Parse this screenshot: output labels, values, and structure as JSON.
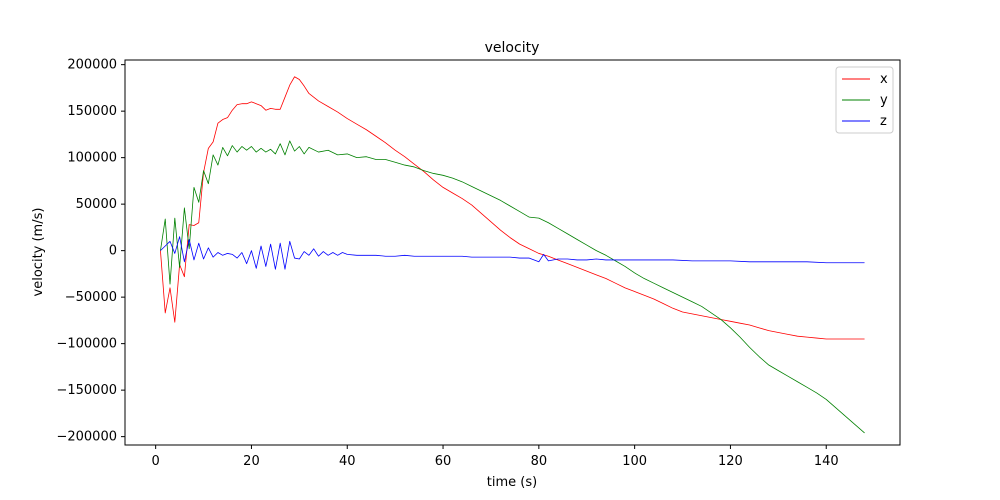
{
  "chart_data": {
    "type": "line",
    "title": "velocity",
    "xlabel": "time (s)",
    "ylabel": "velocity (m/s)",
    "xlim": [
      -6.4,
      155.4
    ],
    "ylim": [
      -209000,
      205000
    ],
    "xticks": [
      0,
      20,
      40,
      60,
      80,
      100,
      120,
      140
    ],
    "yticks": [
      -200000,
      -150000,
      -100000,
      -50000,
      0,
      50000,
      100000,
      150000,
      200000
    ],
    "grid": false,
    "legend_position": "top-right",
    "series": [
      {
        "name": "x",
        "color": "#ff0000",
        "points": [
          [
            1,
            0
          ],
          [
            2,
            -67000
          ],
          [
            3,
            -40000
          ],
          [
            4,
            -77000
          ],
          [
            5,
            -15000
          ],
          [
            6,
            -28000
          ],
          [
            7,
            28000
          ],
          [
            8,
            27000
          ],
          [
            9,
            30000
          ],
          [
            10,
            84000
          ],
          [
            11,
            110000
          ],
          [
            12,
            117000
          ],
          [
            13,
            137000
          ],
          [
            14,
            141000
          ],
          [
            15,
            143000
          ],
          [
            16,
            151000
          ],
          [
            17,
            157000
          ],
          [
            18,
            158000
          ],
          [
            19,
            158000
          ],
          [
            20,
            160000
          ],
          [
            21,
            158000
          ],
          [
            22,
            156000
          ],
          [
            23,
            151000
          ],
          [
            24,
            153000
          ],
          [
            25,
            152000
          ],
          [
            26,
            152000
          ],
          [
            27,
            165000
          ],
          [
            28,
            178000
          ],
          [
            29,
            187000
          ],
          [
            30,
            184000
          ],
          [
            31,
            177000
          ],
          [
            32,
            169000
          ],
          [
            34,
            161000
          ],
          [
            36,
            155000
          ],
          [
            38,
            149000
          ],
          [
            40,
            142000
          ],
          [
            42,
            136000
          ],
          [
            44,
            130000
          ],
          [
            46,
            123000
          ],
          [
            48,
            116000
          ],
          [
            50,
            108000
          ],
          [
            52,
            101000
          ],
          [
            54,
            93000
          ],
          [
            56,
            85000
          ],
          [
            58,
            76000
          ],
          [
            60,
            68000
          ],
          [
            62,
            62000
          ],
          [
            64,
            56000
          ],
          [
            66,
            49000
          ],
          [
            68,
            40000
          ],
          [
            70,
            31000
          ],
          [
            72,
            22000
          ],
          [
            74,
            14000
          ],
          [
            76,
            7000
          ],
          [
            78,
            2000
          ],
          [
            80,
            -3000
          ],
          [
            82,
            -6000
          ],
          [
            84,
            -10000
          ],
          [
            86,
            -14000
          ],
          [
            88,
            -18000
          ],
          [
            90,
            -22000
          ],
          [
            92,
            -26000
          ],
          [
            94,
            -30000
          ],
          [
            96,
            -35000
          ],
          [
            98,
            -40000
          ],
          [
            100,
            -44000
          ],
          [
            102,
            -48000
          ],
          [
            104,
            -52000
          ],
          [
            106,
            -57000
          ],
          [
            108,
            -62000
          ],
          [
            110,
            -66000
          ],
          [
            112,
            -68000
          ],
          [
            114,
            -70000
          ],
          [
            116,
            -72000
          ],
          [
            118,
            -74000
          ],
          [
            120,
            -76000
          ],
          [
            122,
            -78000
          ],
          [
            124,
            -80000
          ],
          [
            126,
            -83000
          ],
          [
            128,
            -86000
          ],
          [
            130,
            -88000
          ],
          [
            132,
            -90000
          ],
          [
            134,
            -92000
          ],
          [
            136,
            -93000
          ],
          [
            138,
            -94000
          ],
          [
            140,
            -95000
          ],
          [
            144,
            -95000
          ],
          [
            148,
            -95000
          ]
        ]
      },
      {
        "name": "y",
        "color": "#008000",
        "points": [
          [
            1,
            0
          ],
          [
            2,
            34000
          ],
          [
            3,
            -36000
          ],
          [
            4,
            35000
          ],
          [
            5,
            -18000
          ],
          [
            6,
            46000
          ],
          [
            7,
            2000
          ],
          [
            8,
            68000
          ],
          [
            9,
            52000
          ],
          [
            10,
            86000
          ],
          [
            11,
            72000
          ],
          [
            12,
            103000
          ],
          [
            13,
            92000
          ],
          [
            14,
            111000
          ],
          [
            15,
            102000
          ],
          [
            16,
            113000
          ],
          [
            17,
            106000
          ],
          [
            18,
            112000
          ],
          [
            19,
            108000
          ],
          [
            20,
            112000
          ],
          [
            21,
            106000
          ],
          [
            22,
            110000
          ],
          [
            23,
            106000
          ],
          [
            24,
            109000
          ],
          [
            25,
            104000
          ],
          [
            26,
            115000
          ],
          [
            27,
            103000
          ],
          [
            28,
            118000
          ],
          [
            29,
            107000
          ],
          [
            30,
            112000
          ],
          [
            31,
            104000
          ],
          [
            32,
            111000
          ],
          [
            34,
            106000
          ],
          [
            36,
            108000
          ],
          [
            38,
            103000
          ],
          [
            40,
            104000
          ],
          [
            42,
            100000
          ],
          [
            44,
            101000
          ],
          [
            46,
            98000
          ],
          [
            48,
            98000
          ],
          [
            50,
            95000
          ],
          [
            52,
            92000
          ],
          [
            54,
            90000
          ],
          [
            56,
            86000
          ],
          [
            58,
            83000
          ],
          [
            60,
            81000
          ],
          [
            62,
            78000
          ],
          [
            64,
            74000
          ],
          [
            66,
            69000
          ],
          [
            68,
            64000
          ],
          [
            70,
            59000
          ],
          [
            72,
            54000
          ],
          [
            74,
            48000
          ],
          [
            76,
            42000
          ],
          [
            78,
            36000
          ],
          [
            80,
            35000
          ],
          [
            82,
            30000
          ],
          [
            84,
            24000
          ],
          [
            86,
            18000
          ],
          [
            88,
            12000
          ],
          [
            90,
            6000
          ],
          [
            92,
            0
          ],
          [
            94,
            -5000
          ],
          [
            96,
            -11000
          ],
          [
            98,
            -17000
          ],
          [
            100,
            -24000
          ],
          [
            102,
            -30000
          ],
          [
            104,
            -35000
          ],
          [
            106,
            -40000
          ],
          [
            108,
            -45000
          ],
          [
            110,
            -50000
          ],
          [
            112,
            -55000
          ],
          [
            114,
            -60000
          ],
          [
            116,
            -67000
          ],
          [
            118,
            -74000
          ],
          [
            120,
            -83000
          ],
          [
            122,
            -93000
          ],
          [
            124,
            -104000
          ],
          [
            126,
            -114000
          ],
          [
            128,
            -123000
          ],
          [
            130,
            -129000
          ],
          [
            132,
            -135000
          ],
          [
            134,
            -141000
          ],
          [
            136,
            -147000
          ],
          [
            138,
            -153000
          ],
          [
            140,
            -160000
          ],
          [
            142,
            -169000
          ],
          [
            144,
            -178000
          ],
          [
            146,
            -187000
          ],
          [
            148,
            -196000
          ]
        ]
      },
      {
        "name": "z",
        "color": "#0000ff",
        "points": [
          [
            1,
            0
          ],
          [
            2,
            5000
          ],
          [
            3,
            10000
          ],
          [
            4,
            -3000
          ],
          [
            5,
            15000
          ],
          [
            6,
            -12000
          ],
          [
            7,
            12000
          ],
          [
            8,
            -10000
          ],
          [
            9,
            8000
          ],
          [
            10,
            -9000
          ],
          [
            11,
            3000
          ],
          [
            12,
            -7000
          ],
          [
            13,
            -2000
          ],
          [
            14,
            -5000
          ],
          [
            15,
            -3000
          ],
          [
            16,
            -4000
          ],
          [
            17,
            -8000
          ],
          [
            18,
            -2000
          ],
          [
            19,
            -14000
          ],
          [
            20,
            0
          ],
          [
            21,
            -19000
          ],
          [
            22,
            5000
          ],
          [
            23,
            -17000
          ],
          [
            24,
            7000
          ],
          [
            25,
            -20000
          ],
          [
            26,
            8000
          ],
          [
            27,
            -20000
          ],
          [
            28,
            10000
          ],
          [
            29,
            -8000
          ],
          [
            30,
            -9000
          ],
          [
            31,
            -1000
          ],
          [
            32,
            -5000
          ],
          [
            33,
            2000
          ],
          [
            34,
            -6000
          ],
          [
            35,
            -1000
          ],
          [
            36,
            -5000
          ],
          [
            37,
            -2000
          ],
          [
            38,
            -5000
          ],
          [
            39,
            -2000
          ],
          [
            40,
            -4000
          ],
          [
            42,
            -5000
          ],
          [
            44,
            -5000
          ],
          [
            46,
            -5000
          ],
          [
            48,
            -6000
          ],
          [
            50,
            -6000
          ],
          [
            52,
            -5000
          ],
          [
            54,
            -6000
          ],
          [
            56,
            -6000
          ],
          [
            58,
            -6000
          ],
          [
            60,
            -6000
          ],
          [
            62,
            -6000
          ],
          [
            64,
            -6000
          ],
          [
            66,
            -7000
          ],
          [
            68,
            -7000
          ],
          [
            70,
            -7000
          ],
          [
            72,
            -7000
          ],
          [
            74,
            -7000
          ],
          [
            76,
            -8000
          ],
          [
            78,
            -8000
          ],
          [
            80,
            -12000
          ],
          [
            81,
            -4000
          ],
          [
            82,
            -11000
          ],
          [
            84,
            -9000
          ],
          [
            86,
            -9000
          ],
          [
            88,
            -10000
          ],
          [
            90,
            -10000
          ],
          [
            92,
            -9000
          ],
          [
            94,
            -10000
          ],
          [
            96,
            -10000
          ],
          [
            98,
            -10000
          ],
          [
            100,
            -10000
          ],
          [
            104,
            -10000
          ],
          [
            108,
            -10000
          ],
          [
            112,
            -11000
          ],
          [
            116,
            -11000
          ],
          [
            120,
            -11000
          ],
          [
            124,
            -12000
          ],
          [
            128,
            -12000
          ],
          [
            132,
            -12000
          ],
          [
            136,
            -12000
          ],
          [
            140,
            -13000
          ],
          [
            144,
            -13000
          ],
          [
            148,
            -13000
          ]
        ]
      }
    ]
  }
}
